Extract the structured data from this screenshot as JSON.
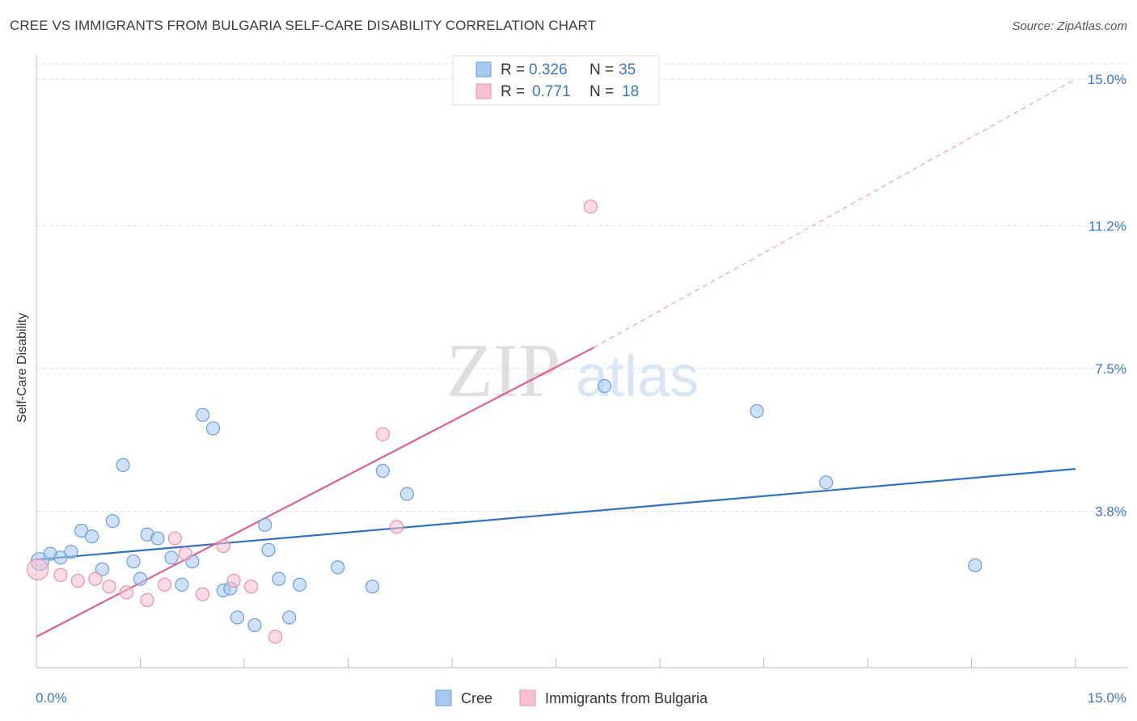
{
  "header": {
    "title": "CREE VS IMMIGRANTS FROM BULGARIA SELF-CARE DISABILITY CORRELATION CHART",
    "source": "Source: ZipAtlas.com"
  },
  "watermark": {
    "zip": "ZIP",
    "atlas": "atlas"
  },
  "colors": {
    "cree": "#a8c8f0",
    "cree_stroke": "#6a9fd8",
    "cree_line": "#2f6fcf",
    "bulgaria": "#f7bfd0",
    "bulgaria_stroke": "#e890aa",
    "bulgaria_line": "#e0608a",
    "tick_label": "#3a78c9"
  },
  "legend_box": {
    "rows": [
      {
        "r_label": "R =",
        "r_value": "0.326",
        "n_label": "N =",
        "n_value": "35"
      },
      {
        "r_label": "R =",
        "r_value": "0.771",
        "n_label": "N =",
        "n_value": "18"
      }
    ]
  },
  "chart_data": {
    "type": "scatter",
    "title": "CREE VS IMMIGRANTS FROM BULGARIA SELF-CARE DISABILITY CORRELATION CHART",
    "xlabel": "",
    "ylabel": "Self-Care Disability",
    "xlim": [
      0,
      15
    ],
    "ylim": [
      0,
      15.4
    ],
    "x_tick_labels": [
      "0.0%",
      "15.0%"
    ],
    "y_ticks": [
      3.8,
      7.5,
      11.2,
      15.0
    ],
    "y_tick_labels": [
      "3.8%",
      "7.5%",
      "11.2%",
      "15.0%"
    ],
    "grid": true,
    "legend_position": "bottom",
    "series": [
      {
        "name": "Cree",
        "r": 0.326,
        "n": 35,
        "points": [
          [
            0.05,
            2.5
          ],
          [
            0.2,
            2.7
          ],
          [
            0.35,
            2.6
          ],
          [
            0.5,
            2.75
          ],
          [
            0.65,
            3.3
          ],
          [
            0.8,
            3.15
          ],
          [
            0.95,
            2.3
          ],
          [
            1.1,
            3.55
          ],
          [
            1.25,
            5.0
          ],
          [
            1.4,
            2.5
          ],
          [
            1.5,
            2.05
          ],
          [
            1.6,
            3.2
          ],
          [
            1.75,
            3.1
          ],
          [
            1.95,
            2.6
          ],
          [
            2.1,
            1.9
          ],
          [
            2.25,
            2.5
          ],
          [
            2.4,
            6.3
          ],
          [
            2.55,
            5.95
          ],
          [
            2.7,
            1.75
          ],
          [
            2.8,
            1.8
          ],
          [
            2.9,
            1.05
          ],
          [
            3.15,
            0.85
          ],
          [
            3.3,
            3.45
          ],
          [
            3.35,
            2.8
          ],
          [
            3.5,
            2.05
          ],
          [
            3.65,
            1.05
          ],
          [
            3.8,
            1.9
          ],
          [
            4.35,
            2.35
          ],
          [
            4.85,
            1.85
          ],
          [
            5.0,
            4.85
          ],
          [
            5.35,
            4.25
          ],
          [
            8.2,
            7.05
          ],
          [
            10.4,
            6.4
          ],
          [
            11.4,
            4.55
          ],
          [
            13.55,
            2.4
          ]
        ],
        "trend": {
          "x": [
            0,
            15
          ],
          "y": [
            2.55,
            4.9
          ]
        }
      },
      {
        "name": "Immigrants from Bulgaria",
        "r": 0.771,
        "n": 18,
        "points": [
          [
            0.02,
            2.3
          ],
          [
            0.35,
            2.15
          ],
          [
            0.6,
            2.0
          ],
          [
            0.85,
            2.05
          ],
          [
            1.05,
            1.85
          ],
          [
            1.3,
            1.7
          ],
          [
            1.6,
            1.5
          ],
          [
            1.85,
            1.9
          ],
          [
            2.0,
            3.1
          ],
          [
            2.15,
            2.7
          ],
          [
            2.4,
            1.65
          ],
          [
            2.7,
            2.9
          ],
          [
            2.85,
            2.0
          ],
          [
            3.1,
            1.85
          ],
          [
            3.45,
            0.55
          ],
          [
            5.0,
            5.8
          ],
          [
            5.2,
            3.4
          ],
          [
            8.0,
            11.7
          ]
        ],
        "trend": {
          "x": [
            0,
            8.05
          ],
          "y": [
            0.55,
            8.05
          ]
        },
        "trend_dashed": {
          "x": [
            8.05,
            15
          ],
          "y": [
            8.05,
            15.0
          ]
        }
      }
    ]
  }
}
